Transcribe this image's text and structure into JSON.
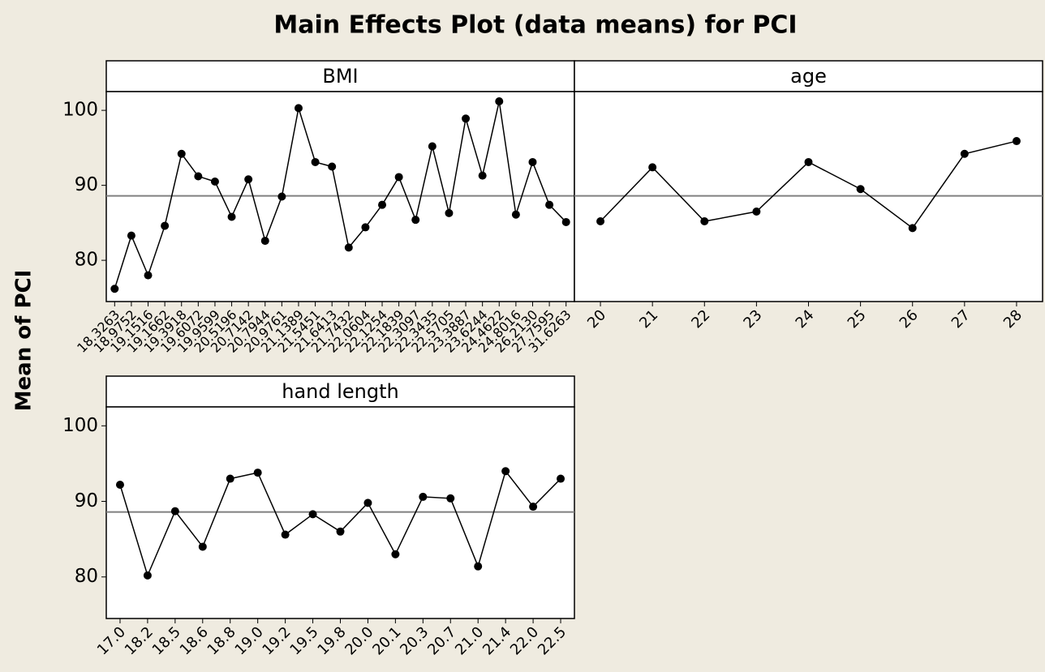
{
  "title": "Main Effects Plot (data means) for PCI",
  "y_label": "Mean of PCI",
  "chart_data": [
    {
      "type": "line",
      "title": "BMI",
      "color": "#000000",
      "reference_line": 88.6,
      "categories": [
        "18.3263",
        "18.9752",
        "19.1516",
        "19.1662",
        "19.3918",
        "19.6072",
        "19.9599",
        "20.5196",
        "20.7142",
        "20.7944",
        "20.9761",
        "21.1389",
        "21.5451",
        "21.6413",
        "21.7432",
        "22.0604",
        "22.1254",
        "22.1839",
        "22.3097",
        "22.3435",
        "22.5705",
        "23.3887",
        "23.6244",
        "24.4622",
        "24.8016",
        "26.2130",
        "27.7595",
        "31.6263"
      ],
      "values": [
        76.2,
        83.3,
        78.0,
        84.6,
        94.2,
        91.2,
        90.5,
        85.8,
        90.8,
        82.6,
        88.5,
        100.3,
        93.1,
        92.5,
        81.7,
        84.4,
        87.4,
        91.1,
        85.4,
        95.2,
        86.3,
        98.9,
        91.3,
        101.2,
        86.1,
        93.1,
        87.4,
        85.1
      ],
      "ylim": [
        74.5,
        102.5
      ],
      "yticks": [
        80,
        90,
        100
      ]
    },
    {
      "type": "line",
      "title": "age",
      "color": "#000000",
      "reference_line": 88.6,
      "categories": [
        "20",
        "21",
        "22",
        "23",
        "24",
        "25",
        "26",
        "27",
        "28"
      ],
      "values": [
        85.2,
        92.4,
        85.2,
        86.5,
        93.1,
        89.5,
        84.3,
        94.2,
        95.9
      ],
      "ylim": [
        74.5,
        102.5
      ]
    },
    {
      "type": "line",
      "title": "hand length",
      "color": "#000000",
      "reference_line": 88.6,
      "categories": [
        "17.0",
        "18.2",
        "18.5",
        "18.6",
        "18.8",
        "19.0",
        "19.2",
        "19.5",
        "19.8",
        "20.0",
        "20.1",
        "20.3",
        "20.7",
        "21.0",
        "21.4",
        "22.0",
        "22.5"
      ],
      "values": [
        92.2,
        80.2,
        88.7,
        84.0,
        93.0,
        93.8,
        85.6,
        88.3,
        86.0,
        89.8,
        83.0,
        90.6,
        90.4,
        81.4,
        94.0,
        89.3,
        93.0
      ],
      "ylim": [
        74.5,
        102.5
      ],
      "yticks": [
        80,
        90,
        100
      ]
    }
  ]
}
